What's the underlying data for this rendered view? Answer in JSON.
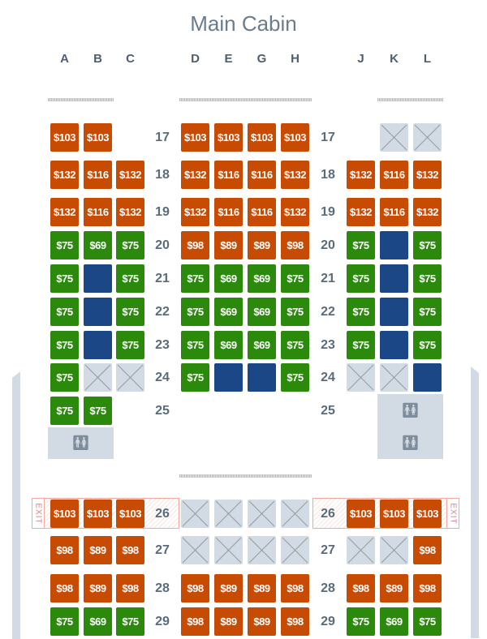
{
  "title": "Main Cabin",
  "columns": [
    "A",
    "B",
    "C",
    "D",
    "E",
    "G",
    "H",
    "J",
    "K",
    "L"
  ],
  "exit_label": "EXIT",
  "colors": {
    "paid_high": "#c84b03",
    "paid_low": "#2b8a0b",
    "occupied": "#1b4787",
    "unavailable": "#d2dbe3"
  },
  "legend_codes": {
    "X": "unavailable",
    "B": "occupied"
  },
  "rows": [
    {
      "number": "17",
      "seats": [
        "$103",
        "$103",
        null,
        "$103",
        "$103",
        "$103",
        "$103",
        null,
        "X",
        "X"
      ]
    },
    {
      "number": "18",
      "seats": [
        "$132",
        "$116",
        "$132",
        "$132",
        "$116",
        "$116",
        "$132",
        "$132",
        "$116",
        "$132"
      ]
    },
    {
      "number": "19",
      "seats": [
        "$132",
        "$116",
        "$132",
        "$132",
        "$116",
        "$116",
        "$132",
        "$132",
        "$116",
        "$132"
      ]
    },
    {
      "number": "20",
      "seats": [
        "$75",
        "$69",
        "$75",
        "$98",
        "$89",
        "$89",
        "$98",
        "$75",
        "B",
        "$75"
      ]
    },
    {
      "number": "21",
      "seats": [
        "$75",
        "B",
        "$75",
        "$75",
        "$69",
        "$69",
        "$75",
        "$75",
        "B",
        "$75"
      ]
    },
    {
      "number": "22",
      "seats": [
        "$75",
        "B",
        "$75",
        "$75",
        "$69",
        "$69",
        "$75",
        "$75",
        "B",
        "$75"
      ]
    },
    {
      "number": "23",
      "seats": [
        "$75",
        "B",
        "$75",
        "$75",
        "$69",
        "$69",
        "$75",
        "$75",
        "B",
        "$75"
      ]
    },
    {
      "number": "24",
      "seats": [
        "$75",
        "X",
        "X",
        "$75",
        "B",
        "B",
        "$75",
        "X",
        "X",
        "B"
      ]
    },
    {
      "number": "25",
      "seats": [
        "$75",
        "$75",
        null,
        null,
        null,
        null,
        null,
        null,
        null,
        null
      ]
    },
    {
      "number": "26",
      "exit": true,
      "seats": [
        "$103",
        "$103",
        "$103",
        "X",
        "X",
        "X",
        "X",
        "$103",
        "$103",
        "$103"
      ]
    },
    {
      "number": "27",
      "seats": [
        "$98",
        "$89",
        "$98",
        "X",
        "X",
        "X",
        "X",
        "X",
        "X",
        "$98"
      ]
    },
    {
      "number": "28",
      "seats": [
        "$98",
        "$89",
        "$98",
        "$98",
        "$89",
        "$89",
        "$98",
        "$98",
        "$89",
        "$98"
      ]
    },
    {
      "number": "29",
      "seats": [
        "$75",
        "$69",
        "$75",
        "$98",
        "$89",
        "$89",
        "$98",
        "$75",
        "$69",
        "$75"
      ]
    }
  ]
}
